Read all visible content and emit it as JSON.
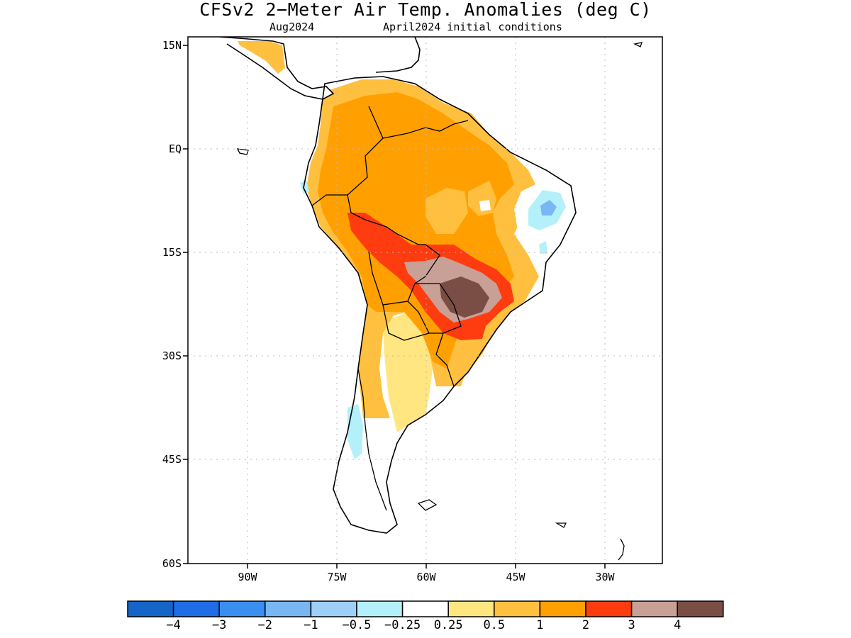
{
  "header": {
    "title": "CFSv2 2−Meter Air Temp. Anomalies (deg C)",
    "subtitle_left": "Aug2024",
    "subtitle_right": "April2024 initial conditions"
  },
  "map": {
    "lat_labels": [
      "15N",
      "EQ",
      "15S",
      "30S",
      "45S",
      "60S"
    ],
    "lon_labels": [
      "90W",
      "75W",
      "60W",
      "45W",
      "30W"
    ],
    "lat_range": [
      "15N",
      "60S"
    ],
    "lon_range_note": "approx 100W to 20W",
    "anomaly_regions": [
      {
        "region": "Central Brazil / Paraguay / Mato Grosso do Sul",
        "max_anomaly": "> 4"
      },
      {
        "region": "Southern Brazil / western Bolivia band",
        "anomaly": "2 to 3"
      },
      {
        "region": "Amazon basin, northern South America",
        "anomaly": "1 to 2"
      },
      {
        "region": "Northeast Brazil coast",
        "anomaly": "-0.5 to -1"
      },
      {
        "region": "Southern Chile coast",
        "anomaly": "-0.25 to -0.5"
      },
      {
        "region": "Patagonia",
        "anomaly": "-0.25 to 0.25"
      }
    ]
  },
  "colorbar": {
    "boundaries": [
      "−4",
      "−3",
      "−2",
      "−1",
      "−0.5",
      "−0.25",
      "0.25",
      "0.5",
      "1",
      "2",
      "3",
      "4"
    ],
    "colors": [
      "#1565c8",
      "#1e6ce6",
      "#3a8ef0",
      "#78b6f4",
      "#9dd0f8",
      "#b4f0fa",
      "#ffffff",
      "#ffe680",
      "#ffc040",
      "#ffa000",
      "#ff3c10",
      "#c8a096",
      "#7a4e44"
    ]
  }
}
